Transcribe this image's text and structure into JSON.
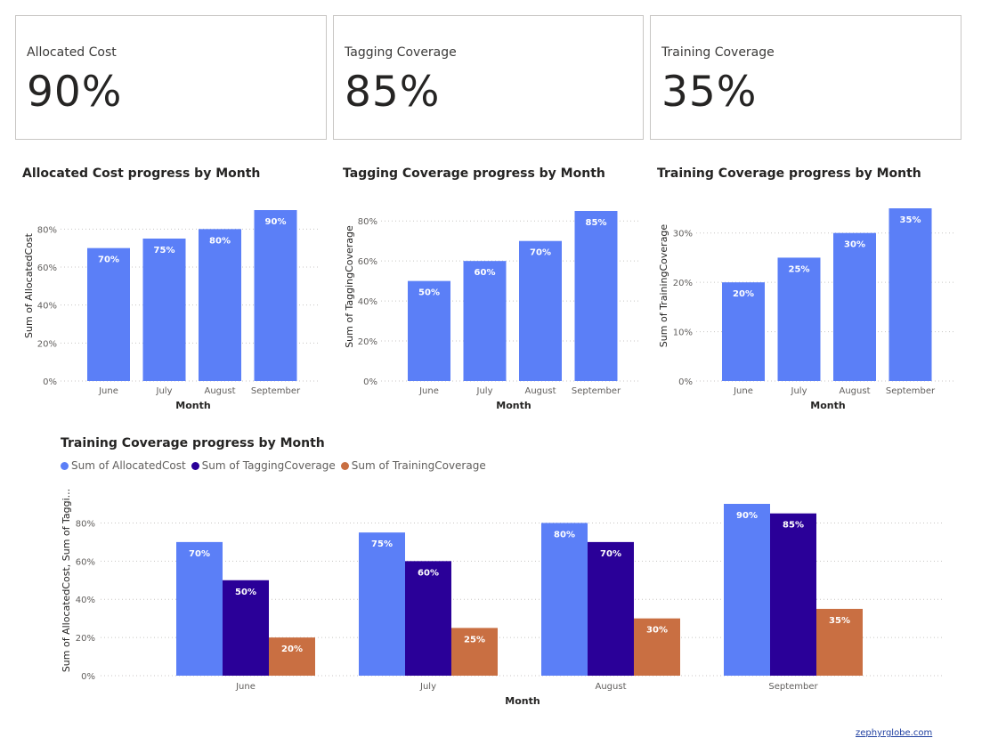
{
  "colors": {
    "allocated": "#5b7ff7",
    "tagging": "#2a0098",
    "training": "#c96f42",
    "grid": "#c8c6c4",
    "axis_text": "#605e5c",
    "label_text": "#ffffff"
  },
  "cards": [
    {
      "title": "Allocated Cost",
      "value": "90%"
    },
    {
      "title": "Tagging Coverage",
      "value": "85%"
    },
    {
      "title": "Training Coverage",
      "value": "35%"
    }
  ],
  "footer": {
    "link_text": "zephyrglobe.com"
  },
  "chart_data": [
    {
      "type": "bar",
      "title": "Allocated Cost progress by Month",
      "xlabel": "Month",
      "ylabel": "Sum of AllocatedCost",
      "categories": [
        "June",
        "July",
        "August",
        "September"
      ],
      "values": [
        70,
        75,
        80,
        90
      ],
      "data_labels": [
        "70%",
        "75%",
        "80%",
        "90%"
      ],
      "ylim": [
        0,
        90
      ],
      "yticks": [
        0,
        20,
        40,
        60,
        80
      ],
      "ytick_labels": [
        "0%",
        "20%",
        "40%",
        "60%",
        "80%"
      ],
      "grid": true
    },
    {
      "type": "bar",
      "title": "Tagging Coverage progress by Month",
      "xlabel": "Month",
      "ylabel": "Sum of TaggingCoverage",
      "categories": [
        "June",
        "July",
        "August",
        "September"
      ],
      "values": [
        50,
        60,
        70,
        85
      ],
      "data_labels": [
        "50%",
        "60%",
        "70%",
        "85%"
      ],
      "ylim": [
        0,
        85
      ],
      "yticks": [
        0,
        20,
        40,
        60,
        80
      ],
      "ytick_labels": [
        "0%",
        "20%",
        "40%",
        "60%",
        "80%"
      ],
      "grid": true
    },
    {
      "type": "bar",
      "title": "Training Coverage progress by Month",
      "xlabel": "Month",
      "ylabel": "Sum of TrainingCoverage",
      "categories": [
        "June",
        "July",
        "August",
        "September"
      ],
      "values": [
        20,
        25,
        30,
        35
      ],
      "data_labels": [
        "20%",
        "25%",
        "30%",
        "35%"
      ],
      "ylim": [
        0,
        35
      ],
      "yticks": [
        0,
        10,
        20,
        30
      ],
      "ytick_labels": [
        "0%",
        "10%",
        "20%",
        "30%"
      ],
      "grid": true
    },
    {
      "type": "bar",
      "title": "Training Coverage progress by Month",
      "xlabel": "Month",
      "ylabel": "Sum of AllocatedCost, Sum of Taggi...",
      "categories": [
        "June",
        "July",
        "August",
        "September"
      ],
      "series": [
        {
          "name": "Sum of AllocatedCost",
          "values": [
            70,
            75,
            80,
            90
          ],
          "data_labels": [
            "70%",
            "75%",
            "80%",
            "90%"
          ]
        },
        {
          "name": "Sum of TaggingCoverage",
          "values": [
            50,
            60,
            70,
            85
          ],
          "data_labels": [
            "50%",
            "60%",
            "70%",
            "85%"
          ]
        },
        {
          "name": "Sum of TrainingCoverage",
          "values": [
            20,
            25,
            30,
            35
          ],
          "data_labels": [
            "20%",
            "25%",
            "30%",
            "35%"
          ]
        }
      ],
      "legend_position": "top-left",
      "ylim": [
        0,
        90
      ],
      "yticks": [
        0,
        20,
        40,
        60,
        80
      ],
      "ytick_labels": [
        "0%",
        "20%",
        "40%",
        "60%",
        "80%"
      ],
      "grid": true
    }
  ]
}
